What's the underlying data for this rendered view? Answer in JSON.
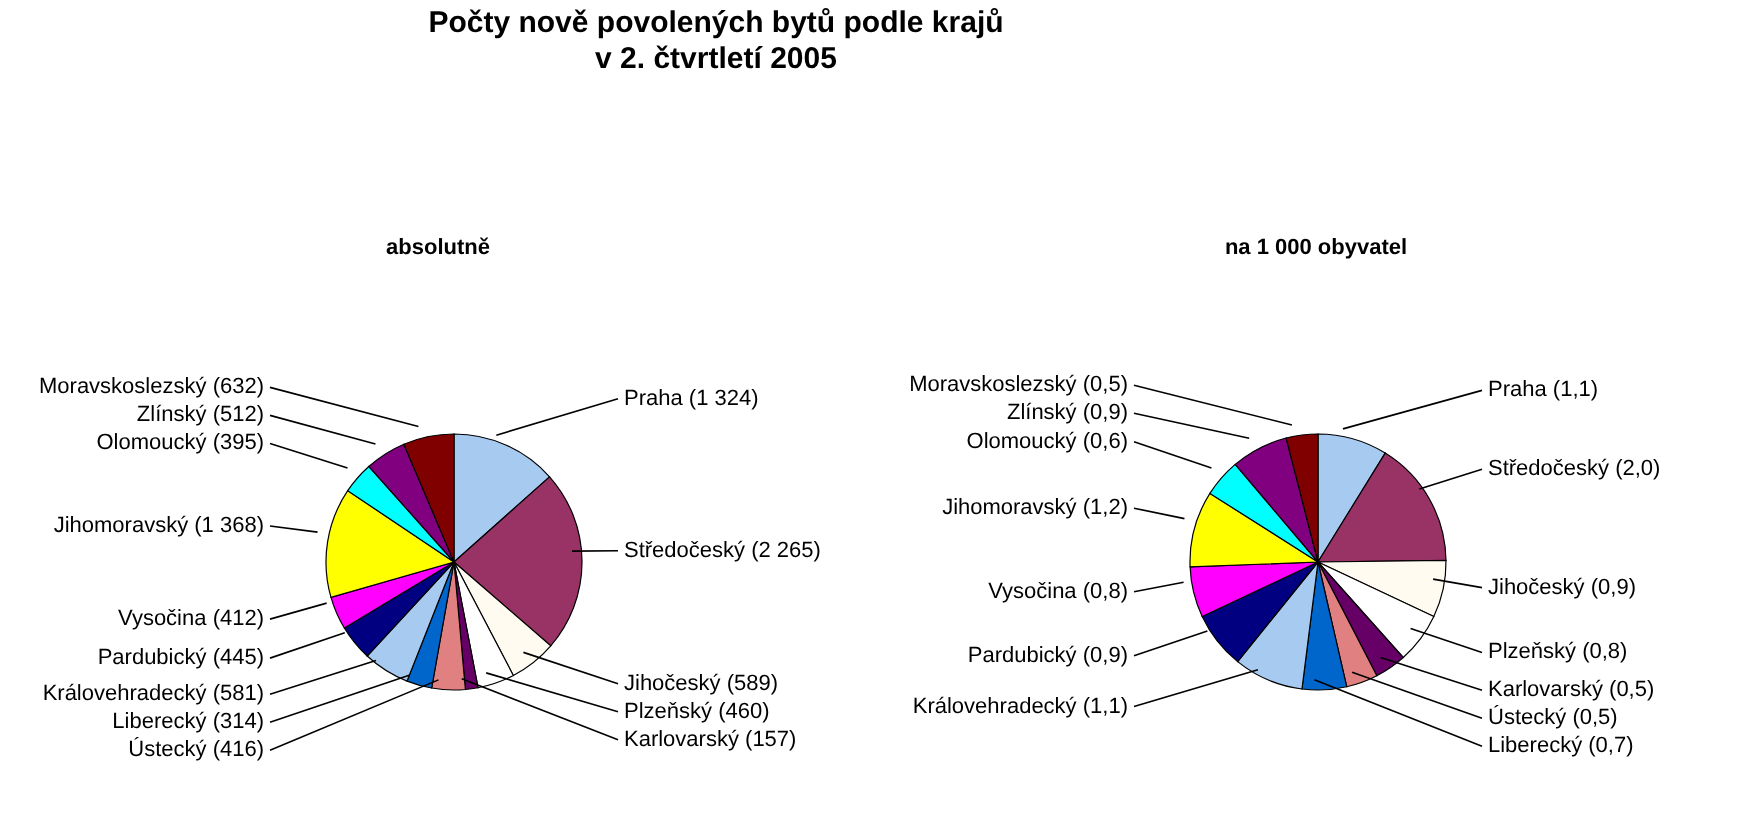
{
  "chart_data": [
    {
      "type": "pie",
      "title": "Počty nově povolených bytů podle krajů\nv 2. čtvrtletí 2005",
      "subtitle": "absolutně",
      "categories": [
        "Praha",
        "Středočeský",
        "Jihočeský",
        "Plzeňský",
        "Karlovarský",
        "Ústecký",
        "Liberecký",
        "Královehradecký",
        "Pardubický",
        "Vysočina",
        "Jihomoravský",
        "Olomoucký",
        "Zlínský",
        "Moravskoslezský"
      ],
      "values": [
        1324,
        2265,
        589,
        460,
        157,
        416,
        314,
        581,
        445,
        412,
        1368,
        395,
        512,
        632
      ],
      "value_labels": [
        "(1 324)",
        "(2 265)",
        "(589)",
        "(460)",
        "(157)",
        "(416)",
        "(314)",
        "(581)",
        "(445)",
        "(412)",
        "(1 368)",
        "(395)",
        "(512)",
        "(632)"
      ],
      "colors": [
        "#a6caf0",
        "#993366",
        "#fffbf0",
        "#ffffff",
        "#660066",
        "#e08080",
        "#0066cc",
        "#a6caf0",
        "#000080",
        "#ff00ff",
        "#ffff00",
        "#00ffff",
        "#800080",
        "#800000"
      ]
    },
    {
      "type": "pie",
      "subtitle": "na 1 000 obyvatel",
      "categories": [
        "Praha",
        "Středočeský",
        "Jihočeský",
        "Plzeňský",
        "Karlovarský",
        "Ústecký",
        "Liberecký",
        "Královehradecký",
        "Pardubický",
        "Vysočina",
        "Jihomoravský",
        "Olomoucký",
        "Zlínský",
        "Moravskoslezský"
      ],
      "values": [
        1.1,
        2.0,
        0.9,
        0.8,
        0.5,
        0.5,
        0.7,
        1.1,
        0.9,
        0.8,
        1.2,
        0.6,
        0.9,
        0.5
      ],
      "value_labels": [
        "(1,1)",
        "(2,0)",
        "(0,9)",
        "(0,8)",
        "(0,5)",
        "(0,5)",
        "(0,7)",
        "(1,1)",
        "(0,9)",
        "(0,8)",
        "(1,2)",
        "(0,6)",
        "(0,9)",
        "(0,5)"
      ],
      "colors": [
        "#a6caf0",
        "#993366",
        "#fffbf0",
        "#ffffff",
        "#660066",
        "#e08080",
        "#0066cc",
        "#a6caf0",
        "#000080",
        "#ff00ff",
        "#ffff00",
        "#00ffff",
        "#800080",
        "#800000"
      ]
    }
  ]
}
